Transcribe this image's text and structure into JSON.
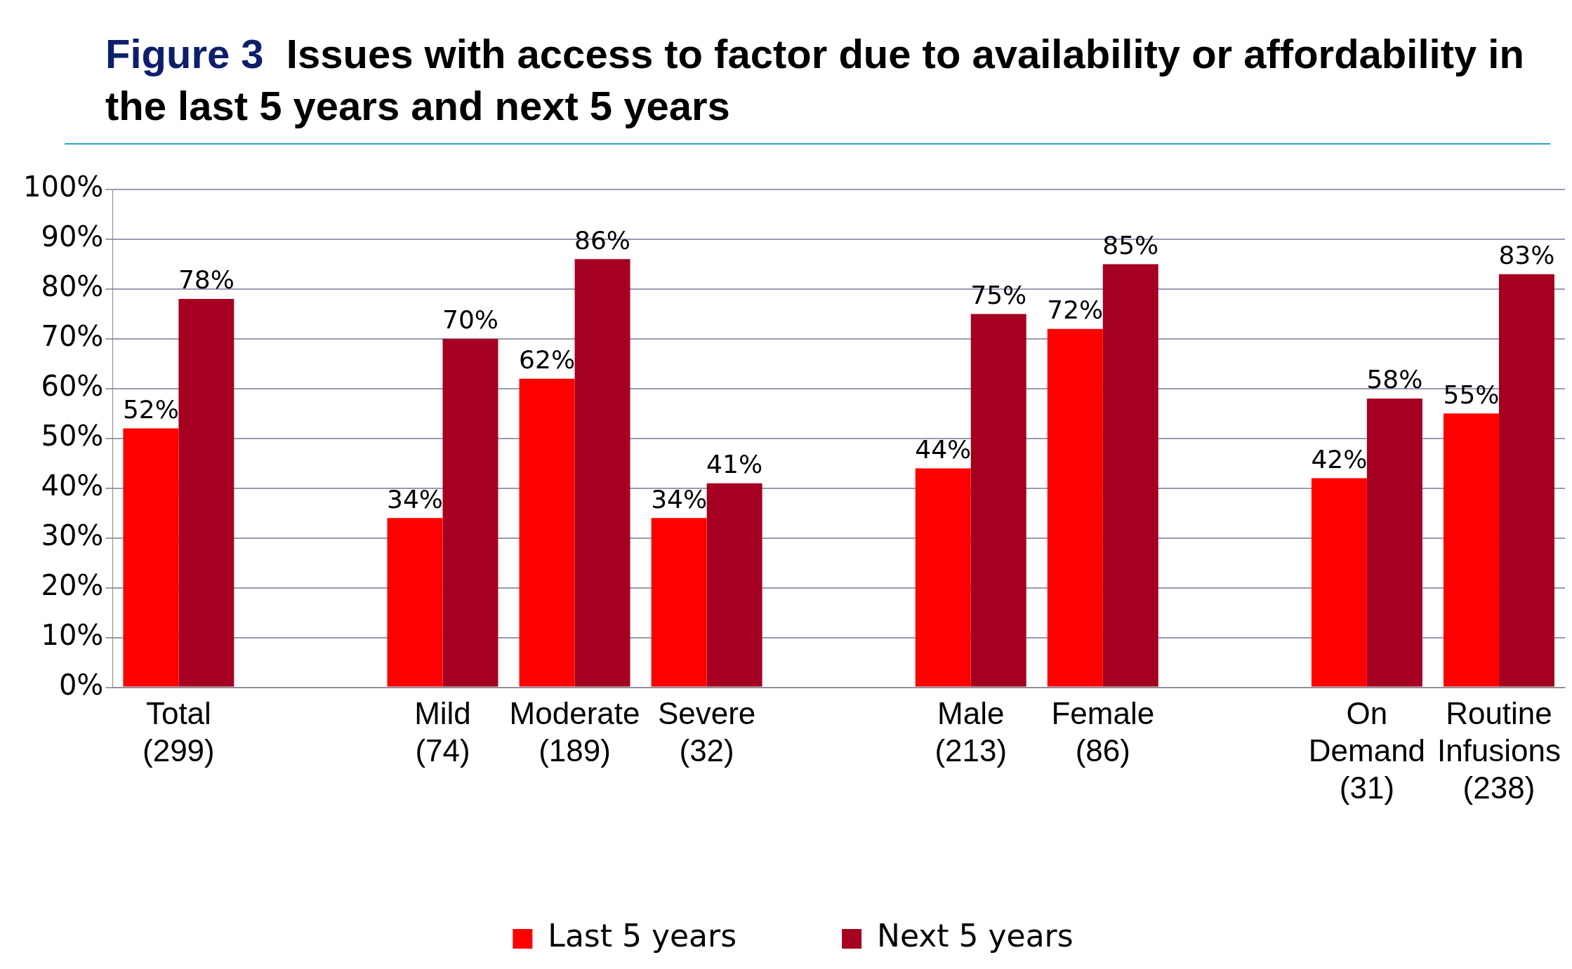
{
  "chart_data": {
    "type": "bar",
    "title": "Figure 3  Issues with access to factor due to availability or affordability in the last 5 years and next 5 years",
    "categories": [
      "Total\n(299)",
      null,
      "Mild\n(74)",
      "Moderate\n(189)",
      "Severe\n(32)",
      null,
      "Male\n(213)",
      "Female\n(86)",
      null,
      "On\nDemand\n(31)",
      "Routine\nInfusions\n(238)"
    ],
    "series": [
      {
        "name": "Last 5 years",
        "color": "#ff0000",
        "values": [
          52,
          null,
          34,
          62,
          34,
          null,
          44,
          72,
          null,
          42,
          55
        ],
        "value_labels": [
          "52%",
          null,
          "34%",
          "62%",
          "34%",
          null,
          "44%",
          "72%",
          null,
          "42%",
          "55%"
        ]
      },
      {
        "name": "Next 5 years",
        "color": "#a50021",
        "values": [
          78,
          null,
          70,
          86,
          41,
          null,
          75,
          85,
          null,
          58,
          83
        ],
        "value_labels": [
          "78%",
          null,
          "70%",
          "86%",
          "41%",
          null,
          "75%",
          "85%",
          null,
          "58%",
          "83%"
        ]
      }
    ],
    "ylim": [
      0,
      100
    ],
    "yticks": [
      {
        "value": 0,
        "label": "0%"
      },
      {
        "value": 10,
        "label": "10%"
      },
      {
        "value": 20,
        "label": "20%"
      },
      {
        "value": 30,
        "label": "30%"
      },
      {
        "value": 40,
        "label": "40%"
      },
      {
        "value": 50,
        "label": "50%"
      },
      {
        "value": 60,
        "label": "60%"
      },
      {
        "value": 70,
        "label": "70%"
      },
      {
        "value": 80,
        "label": "80%"
      },
      {
        "value": 90,
        "label": "90%"
      },
      {
        "value": 100,
        "label": "100%"
      }
    ],
    "grid": "y",
    "legend": "bottom"
  }
}
